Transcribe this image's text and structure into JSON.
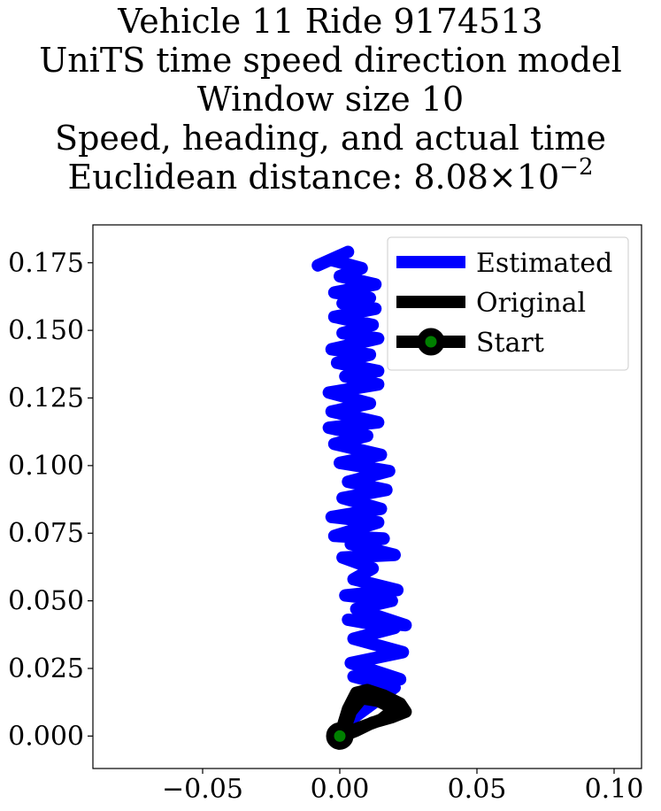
{
  "chart_data": {
    "type": "line",
    "title_lines": [
      "Vehicle 11 Ride 9174513",
      "UniTS time speed direction model",
      "Window size 10",
      "Speed, heading, and actual time"
    ],
    "title_last_prefix": "Euclidean distance: 8.08",
    "title_last_times": "×",
    "title_last_base": "10",
    "title_last_exponent": "−2",
    "xlabel": "",
    "ylabel": "",
    "xlim": [
      -0.09,
      0.11
    ],
    "ylim": [
      -0.012,
      0.189
    ],
    "x_ticks": [
      -0.05,
      0.0,
      0.05,
      0.1
    ],
    "x_tick_labels": [
      "−0.05",
      "0.00",
      "0.05",
      "0.10"
    ],
    "y_ticks": [
      0.0,
      0.025,
      0.05,
      0.075,
      0.1,
      0.125,
      0.15,
      0.175
    ],
    "y_tick_labels": [
      "0.000",
      "0.025",
      "0.050",
      "0.075",
      "0.100",
      "0.125",
      "0.150",
      "0.175"
    ],
    "grid": false,
    "legend_position": "top-right",
    "series": [
      {
        "name": "Estimated",
        "color": "#0000ff",
        "points": [
          [
            0.004,
            0.006
          ],
          [
            0.02,
            0.018
          ],
          [
            0.005,
            0.022
          ],
          [
            0.022,
            0.021
          ],
          [
            0.004,
            0.027
          ],
          [
            0.023,
            0.031
          ],
          [
            0.005,
            0.036
          ],
          [
            0.02,
            0.04
          ],
          [
            0.003,
            0.043
          ],
          [
            0.024,
            0.041
          ],
          [
            0.006,
            0.047
          ],
          [
            0.019,
            0.05
          ],
          [
            0.002,
            0.052
          ],
          [
            0.021,
            0.054
          ],
          [
            0.005,
            0.058
          ],
          [
            0.012,
            0.062
          ],
          [
            0.001,
            0.066
          ],
          [
            0.02,
            0.067
          ],
          [
            0.004,
            0.071
          ],
          [
            0.016,
            0.073
          ],
          [
            -0.002,
            0.074
          ],
          [
            0.014,
            0.079
          ],
          [
            -0.003,
            0.081
          ],
          [
            0.015,
            0.084
          ],
          [
            0.001,
            0.088
          ],
          [
            0.017,
            0.091
          ],
          [
            0.003,
            0.094
          ],
          [
            0.018,
            0.098
          ],
          [
            0.0,
            0.101
          ],
          [
            0.015,
            0.104
          ],
          [
            -0.002,
            0.108
          ],
          [
            0.01,
            0.111
          ],
          [
            -0.004,
            0.114
          ],
          [
            0.014,
            0.116
          ],
          [
            -0.003,
            0.12
          ],
          [
            0.011,
            0.123
          ],
          [
            -0.004,
            0.127
          ],
          [
            0.014,
            0.13
          ],
          [
            0.002,
            0.133
          ],
          [
            0.014,
            0.135
          ],
          [
            -0.001,
            0.138
          ],
          [
            0.011,
            0.141
          ],
          [
            -0.003,
            0.143
          ],
          [
            0.014,
            0.147
          ],
          [
            0.001,
            0.149
          ],
          [
            0.012,
            0.152
          ],
          [
            -0.002,
            0.155
          ],
          [
            0.013,
            0.158
          ],
          [
            0.001,
            0.16
          ],
          [
            0.011,
            0.162
          ],
          [
            -0.002,
            0.164
          ],
          [
            0.013,
            0.167
          ],
          [
            0.0,
            0.17
          ],
          [
            0.008,
            0.173
          ],
          [
            -0.003,
            0.176
          ],
          [
            0.003,
            0.179
          ],
          [
            -0.008,
            0.174
          ]
        ]
      },
      {
        "name": "Original",
        "color": "#000000",
        "points": [
          [
            0.0,
            0.0
          ],
          [
            0.003,
            0.01
          ],
          [
            0.006,
            0.016
          ],
          [
            0.01,
            0.017
          ],
          [
            0.016,
            0.015
          ],
          [
            0.022,
            0.012
          ],
          [
            0.024,
            0.009
          ],
          [
            0.019,
            0.007
          ],
          [
            0.012,
            0.005
          ],
          [
            0.006,
            0.002
          ],
          [
            0.001,
            0.0
          ],
          [
            0.004,
            0.009
          ],
          [
            0.008,
            0.014
          ],
          [
            0.014,
            0.013
          ],
          [
            0.02,
            0.01
          ],
          [
            0.015,
            0.006
          ],
          [
            0.007,
            0.003
          ],
          [
            0.002,
            0.001
          ],
          [
            0.0,
            0.0
          ]
        ]
      }
    ],
    "start_point": {
      "name": "Start",
      "x": 0.0,
      "y": 0.0,
      "color": "#008000",
      "edge_color": "#000000"
    }
  }
}
